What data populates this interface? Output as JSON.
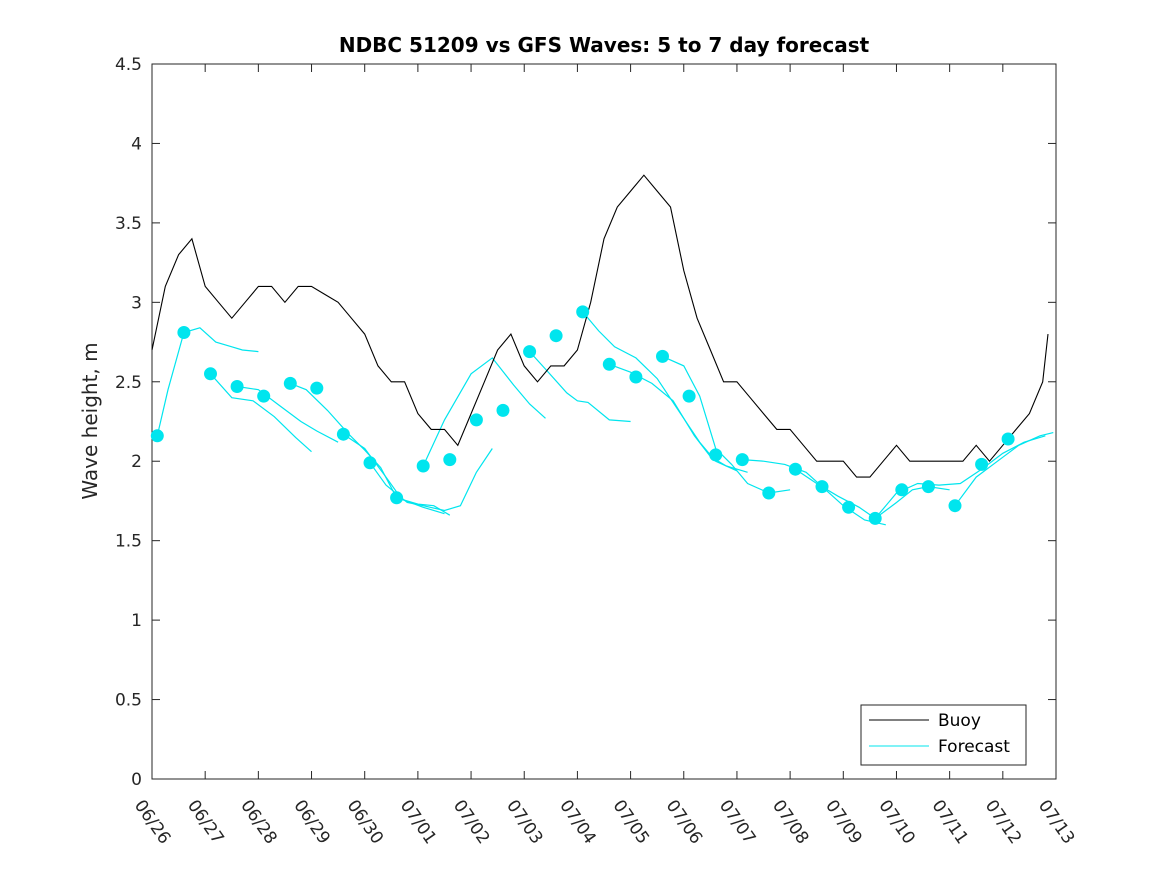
{
  "chart_data": {
    "type": "line",
    "title": "NDBC 51209 vs GFS Waves: 5 to 7 day forecast",
    "xlabel": "",
    "ylabel": "Wave height, m",
    "xlim": [
      0,
      17
    ],
    "ylim": [
      0,
      4.5
    ],
    "yticks": [
      "0",
      "0.5",
      "1",
      "1.5",
      "2",
      "2.5",
      "3",
      "3.5",
      "4",
      "4.5"
    ],
    "xticks": [
      "06/26",
      "06/27",
      "06/28",
      "06/29",
      "06/30",
      "07/01",
      "07/02",
      "07/03",
      "07/04",
      "07/05",
      "07/06",
      "07/07",
      "07/08",
      "07/09",
      "07/10",
      "07/11",
      "07/12",
      "07/13"
    ],
    "grid": false,
    "legend_position": "bottom-right",
    "colors": {
      "buoy": "#000000",
      "forecast": "#00e5ee",
      "axis": "#262626"
    },
    "series": [
      {
        "name": "Buoy",
        "x": [
          0,
          0.25,
          0.5,
          0.75,
          1,
          1.25,
          1.5,
          1.75,
          2,
          2.25,
          2.5,
          2.75,
          3,
          3.25,
          3.5,
          3.75,
          4,
          4.25,
          4.5,
          4.75,
          5,
          5.25,
          5.5,
          5.75,
          6,
          6.25,
          6.5,
          6.75,
          7,
          7.25,
          7.5,
          7.75,
          8,
          8.25,
          8.5,
          8.75,
          9,
          9.25,
          9.5,
          9.75,
          10,
          10.25,
          10.5,
          10.75,
          11,
          11.25,
          11.5,
          11.75,
          12,
          12.25,
          12.5,
          12.75,
          13,
          13.25,
          13.5,
          13.75,
          14,
          14.25,
          14.5,
          14.75,
          15,
          15.25,
          15.5,
          15.75,
          16,
          16.25,
          16.5,
          16.75,
          16.85
        ],
        "y": [
          2.7,
          3.1,
          3.3,
          3.4,
          3.1,
          3.0,
          2.9,
          3.0,
          3.1,
          3.1,
          3.0,
          3.1,
          3.1,
          3.05,
          3.0,
          2.9,
          2.8,
          2.6,
          2.5,
          2.5,
          2.3,
          2.2,
          2.2,
          2.1,
          2.3,
          2.5,
          2.7,
          2.8,
          2.6,
          2.5,
          2.6,
          2.6,
          2.7,
          3.0,
          3.4,
          3.6,
          3.7,
          3.8,
          3.7,
          3.6,
          3.2,
          2.9,
          2.7,
          2.5,
          2.5,
          2.4,
          2.3,
          2.2,
          2.2,
          2.1,
          2.0,
          2.0,
          2.0,
          1.9,
          1.9,
          2.0,
          2.1,
          2.0,
          2.0,
          2.0,
          2.0,
          2.0,
          2.1,
          2.0,
          2.1,
          2.2,
          2.3,
          2.5,
          2.8
        ]
      },
      {
        "name": "Forecast",
        "markers": [
          [
            0.1,
            2.16
          ],
          [
            0.6,
            2.81
          ],
          [
            1.1,
            2.55
          ],
          [
            1.6,
            2.47
          ],
          [
            2.1,
            2.41
          ],
          [
            2.6,
            2.49
          ],
          [
            3.1,
            2.46
          ],
          [
            3.6,
            2.17
          ],
          [
            4.1,
            1.99
          ],
          [
            4.6,
            1.77
          ],
          [
            5.1,
            1.97
          ],
          [
            5.6,
            2.01
          ],
          [
            6.1,
            2.26
          ],
          [
            6.6,
            2.32
          ],
          [
            7.1,
            2.69
          ],
          [
            7.6,
            2.79
          ],
          [
            8.1,
            2.94
          ],
          [
            8.6,
            2.61
          ],
          [
            9.1,
            2.53
          ],
          [
            9.6,
            2.66
          ],
          [
            10.1,
            2.41
          ],
          [
            10.6,
            2.04
          ],
          [
            11.1,
            2.01
          ],
          [
            11.6,
            1.8
          ],
          [
            12.1,
            1.95
          ],
          [
            12.6,
            1.84
          ],
          [
            13.1,
            1.71
          ],
          [
            13.6,
            1.64
          ],
          [
            14.1,
            1.82
          ],
          [
            14.6,
            1.84
          ],
          [
            15.1,
            1.72
          ],
          [
            15.6,
            1.98
          ],
          [
            16.1,
            2.14
          ]
        ],
        "traces": [
          [
            [
              0.1,
              2.16
            ],
            [
              0.3,
              2.45
            ],
            [
              0.6,
              2.81
            ],
            [
              0.9,
              2.84
            ],
            [
              1.2,
              2.75
            ],
            [
              1.5,
              2.72
            ],
            [
              1.7,
              2.7
            ],
            [
              2.0,
              2.69
            ]
          ],
          [
            [
              1.1,
              2.55
            ],
            [
              1.5,
              2.4
            ],
            [
              1.9,
              2.38
            ],
            [
              2.3,
              2.28
            ],
            [
              2.7,
              2.15
            ],
            [
              3.0,
              2.06
            ]
          ],
          [
            [
              1.6,
              2.47
            ],
            [
              2.0,
              2.45
            ],
            [
              2.4,
              2.35
            ],
            [
              2.8,
              2.25
            ],
            [
              3.1,
              2.19
            ],
            [
              3.5,
              2.12
            ]
          ],
          [
            [
              2.6,
              2.49
            ],
            [
              2.9,
              2.45
            ],
            [
              3.3,
              2.32
            ],
            [
              3.7,
              2.17
            ],
            [
              4.0,
              2.07
            ],
            [
              4.3,
              1.96
            ],
            [
              4.6,
              1.77
            ],
            [
              5.0,
              1.73
            ],
            [
              5.3,
              1.72
            ],
            [
              5.6,
              1.66
            ]
          ],
          [
            [
              3.6,
              2.17
            ],
            [
              4.0,
              2.08
            ],
            [
              4.4,
              1.9
            ],
            [
              4.7,
              1.76
            ],
            [
              5.1,
              1.71
            ],
            [
              5.5,
              1.67
            ]
          ],
          [
            [
              4.1,
              1.99
            ],
            [
              4.4,
              1.85
            ],
            [
              4.8,
              1.74
            ],
            [
              5.1,
              1.72
            ],
            [
              5.5,
              1.69
            ],
            [
              5.8,
              1.72
            ],
            [
              6.1,
              1.93
            ],
            [
              6.4,
              2.08
            ]
          ],
          [
            [
              5.1,
              1.97
            ],
            [
              5.5,
              2.26
            ],
            [
              6.0,
              2.55
            ],
            [
              6.4,
              2.65
            ],
            [
              6.8,
              2.48
            ],
            [
              7.1,
              2.36
            ],
            [
              7.4,
              2.27
            ]
          ],
          [
            [
              7.1,
              2.69
            ],
            [
              7.4,
              2.58
            ],
            [
              7.8,
              2.43
            ],
            [
              8.0,
              2.38
            ],
            [
              8.2,
              2.37
            ],
            [
              8.6,
              2.26
            ],
            [
              9.0,
              2.25
            ]
          ],
          [
            [
              8.1,
              2.94
            ],
            [
              8.4,
              2.82
            ],
            [
              8.7,
              2.72
            ],
            [
              9.1,
              2.65
            ],
            [
              9.5,
              2.52
            ],
            [
              9.9,
              2.32
            ],
            [
              10.3,
              2.12
            ],
            [
              10.6,
              2.0
            ],
            [
              11.0,
              1.94
            ]
          ],
          [
            [
              8.6,
              2.61
            ],
            [
              9.0,
              2.56
            ],
            [
              9.4,
              2.49
            ],
            [
              9.8,
              2.38
            ],
            [
              10.2,
              2.16
            ],
            [
              10.5,
              2.03
            ],
            [
              10.8,
              1.97
            ],
            [
              11.2,
              1.93
            ]
          ],
          [
            [
              9.6,
              2.66
            ],
            [
              10.0,
              2.6
            ],
            [
              10.3,
              2.41
            ],
            [
              10.6,
              2.08
            ],
            [
              10.9,
              1.98
            ],
            [
              11.2,
              1.86
            ],
            [
              11.6,
              1.8
            ],
            [
              12.0,
              1.82
            ]
          ],
          [
            [
              11.1,
              2.01
            ],
            [
              11.5,
              2.0
            ],
            [
              11.9,
              1.98
            ],
            [
              12.3,
              1.93
            ],
            [
              12.6,
              1.84
            ],
            [
              13.0,
              1.72
            ],
            [
              13.4,
              1.63
            ],
            [
              13.8,
              1.6
            ]
          ],
          [
            [
              12.1,
              1.95
            ],
            [
              12.5,
              1.86
            ],
            [
              12.9,
              1.78
            ],
            [
              13.3,
              1.71
            ],
            [
              13.6,
              1.64
            ],
            [
              14.0,
              1.74
            ],
            [
              14.3,
              1.82
            ],
            [
              14.6,
              1.84
            ],
            [
              15.0,
              1.82
            ]
          ],
          [
            [
              13.6,
              1.64
            ],
            [
              14.0,
              1.8
            ],
            [
              14.4,
              1.86
            ],
            [
              14.8,
              1.85
            ],
            [
              15.2,
              1.86
            ],
            [
              15.6,
              1.95
            ],
            [
              16.0,
              2.05
            ],
            [
              16.4,
              2.12
            ],
            [
              16.8,
              2.16
            ]
          ],
          [
            [
              15.1,
              1.72
            ],
            [
              15.5,
              1.9
            ],
            [
              15.9,
              2.0
            ],
            [
              16.3,
              2.1
            ],
            [
              16.7,
              2.16
            ],
            [
              16.95,
              2.18
            ]
          ]
        ]
      }
    ]
  }
}
